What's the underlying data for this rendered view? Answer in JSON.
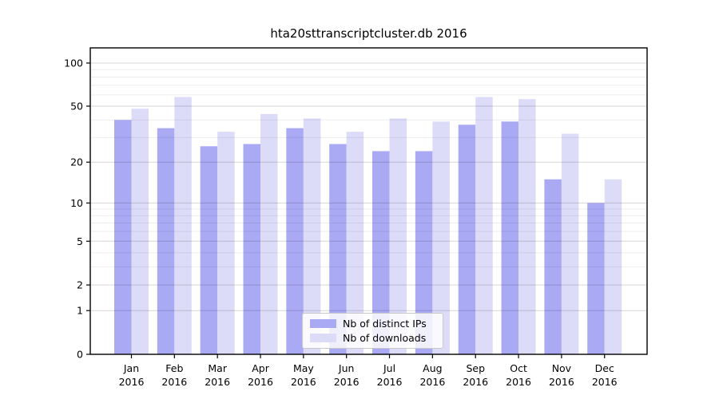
{
  "page": {
    "background": "#ffffff"
  },
  "chart_data": {
    "type": "bar",
    "title": "hta20sttranscriptcluster.db 2016",
    "categories": [
      "Jan 2016",
      "Feb 2016",
      "Mar 2016",
      "Apr 2016",
      "May 2016",
      "Jun 2016",
      "Jul 2016",
      "Aug 2016",
      "Sep 2016",
      "Oct 2016",
      "Nov 2016",
      "Dec 2016"
    ],
    "series": [
      {
        "name": "Nb of distinct IPs",
        "color": "#a9a9f4",
        "values": [
          40,
          35,
          26,
          27,
          35,
          27,
          24,
          24,
          37,
          39,
          15,
          10
        ]
      },
      {
        "name": "Nb of downloads",
        "color": "#dcdcf8",
        "values": [
          48,
          58,
          33,
          44,
          41,
          33,
          41,
          39,
          58,
          56,
          32,
          15
        ]
      }
    ],
    "xlabel": "",
    "ylabel": "",
    "yscale": "log1p",
    "ylim": [
      0,
      127
    ],
    "yticks": [
      0,
      1,
      2,
      5,
      10,
      20,
      50,
      100
    ],
    "yminor_gridlines": [
      3,
      4,
      6,
      7,
      8,
      9,
      30,
      40,
      60,
      70,
      80,
      90
    ],
    "grid": "horizontal",
    "grid_over_bars": true,
    "legend_position": "lower center"
  },
  "legend": {
    "items": [
      {
        "label": "Nb of distinct IPs"
      },
      {
        "label": "Nb of downloads"
      }
    ]
  },
  "colors": {
    "ips_bar": "#a9a9f4",
    "downloads_bar": "#dcdcf8",
    "grid_major": "rgba(0,0,0,0.16)",
    "grid_minor": "rgba(0,0,0,0.07)",
    "axis": "#000000",
    "legend_border": "#c9c9c9"
  }
}
